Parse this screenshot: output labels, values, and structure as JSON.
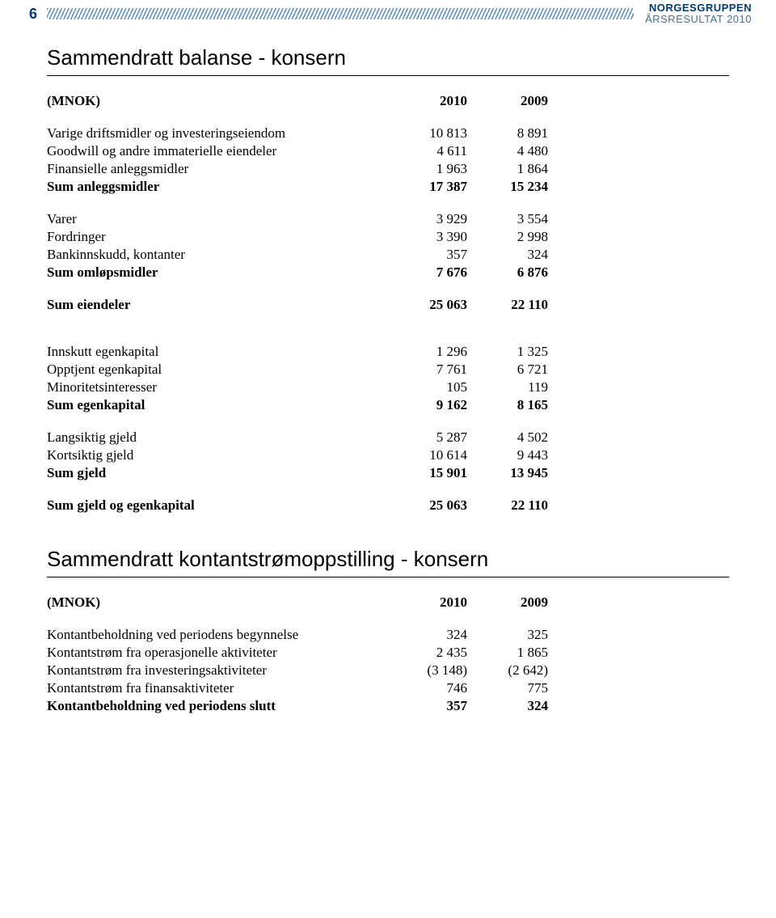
{
  "header": {
    "page_number": "6",
    "logo_top": "NORGESGRUPPEN",
    "logo_bottom": "ÅRSRESULTAT 2010"
  },
  "balance": {
    "title": "Sammendratt balanse - konsern",
    "unit_label": "(MNOK)",
    "col1_header": "2010",
    "col2_header": "2009",
    "rows": {
      "varige_driftsmidler": {
        "label": "Varige driftsmidler og investeringseiendom",
        "v1": "10 813",
        "v2": "8 891"
      },
      "goodwill": {
        "label": "Goodwill og andre immaterielle eiendeler",
        "v1": "4 611",
        "v2": "4 480"
      },
      "finansielle_anleggsmidler": {
        "label": "Finansielle anleggsmidler",
        "v1": "1 963",
        "v2": "1 864"
      },
      "sum_anleggsmidler": {
        "label": "Sum anleggsmidler",
        "v1": "17 387",
        "v2": "15 234"
      },
      "varer": {
        "label": "Varer",
        "v1": "3 929",
        "v2": "3 554"
      },
      "fordringer": {
        "label": "Fordringer",
        "v1": "3 390",
        "v2": "2 998"
      },
      "bankinnskudd": {
        "label": "Bankinnskudd, kontanter",
        "v1": "357",
        "v2": "324"
      },
      "sum_omlopsmidler": {
        "label": "Sum omløpsmidler",
        "v1": "7 676",
        "v2": "6 876"
      },
      "sum_eiendeler": {
        "label": "Sum eiendeler",
        "v1": "25 063",
        "v2": "22 110"
      },
      "innskutt_egenkapital": {
        "label": "Innskutt egenkapital",
        "v1": "1 296",
        "v2": "1 325"
      },
      "opptjent_egenkapital": {
        "label": "Opptjent egenkapital",
        "v1": "7 761",
        "v2": "6 721"
      },
      "minoritet": {
        "label": "Minoritetsinteresser",
        "v1": "105",
        "v2": "119"
      },
      "sum_egenkapital": {
        "label": "Sum egenkapital",
        "v1": "9 162",
        "v2": "8 165"
      },
      "langsiktig_gjeld": {
        "label": "Langsiktig gjeld",
        "v1": "5 287",
        "v2": "4 502"
      },
      "kortsiktig_gjeld": {
        "label": "Kortsiktig gjeld",
        "v1": "10 614",
        "v2": "9 443"
      },
      "sum_gjeld": {
        "label": "Sum gjeld",
        "v1": "15 901",
        "v2": "13 945"
      },
      "sum_gjeld_ek": {
        "label": "Sum gjeld og egenkapital",
        "v1": "25 063",
        "v2": "22 110"
      }
    }
  },
  "cashflow": {
    "title": "Sammendratt kontantstrømoppstilling - konsern",
    "unit_label": "(MNOK)",
    "col1_header": "2010",
    "col2_header": "2009",
    "rows": {
      "beginning": {
        "label": "Kontantbeholdning ved periodens begynnelse",
        "v1": "324",
        "v2": "325"
      },
      "operasjonelle": {
        "label": "Kontantstrøm fra operasjonelle aktiviteter",
        "v1": "2 435",
        "v2": "1 865"
      },
      "investering": {
        "label": "Kontantstrøm fra investeringsaktiviteter",
        "v1": "(3 148)",
        "v2": "(2 642)"
      },
      "finans": {
        "label": "Kontantstrøm fra finansaktiviteter",
        "v1": "746",
        "v2": "775"
      },
      "slutt": {
        "label": "Kontantbeholdning ved periodens slutt",
        "v1": "357",
        "v2": "324"
      }
    }
  }
}
